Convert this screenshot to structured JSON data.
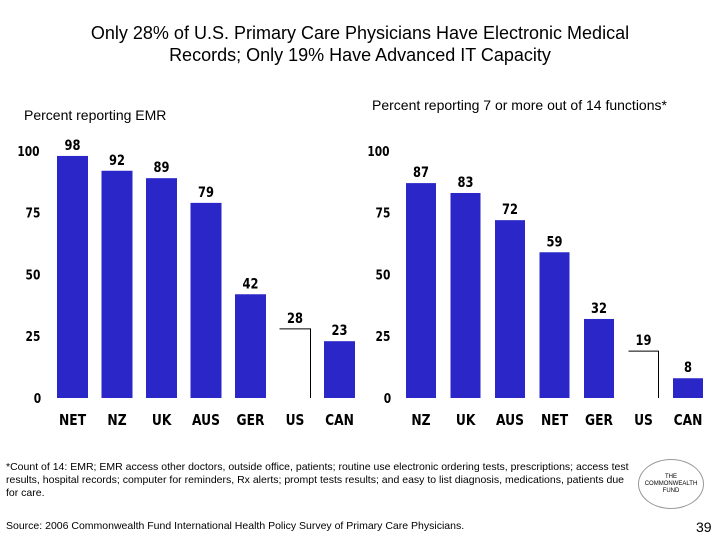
{
  "title": {
    "line1": "Only 28% of U.S. Primary Care Physicians Have Electronic Medical",
    "line2": "Records; Only 19% Have Advanced IT Capacity"
  },
  "chart_data": [
    {
      "type": "bar",
      "title": "Percent reporting EMR",
      "categories": [
        "NET",
        "NZ",
        "UK",
        "AUS",
        "GER",
        "US",
        "CAN"
      ],
      "values": [
        98,
        92,
        89,
        79,
        42,
        28,
        23
      ],
      "highlight": "US",
      "ylim": [
        0,
        100
      ],
      "yticks": [
        0,
        25,
        50,
        75,
        100
      ],
      "grid": false
    },
    {
      "type": "bar",
      "title": "Percent reporting 7 or more out of 14 functions*",
      "categories": [
        "NZ",
        "UK",
        "AUS",
        "NET",
        "GER",
        "US",
        "CAN"
      ],
      "values": [
        87,
        83,
        72,
        59,
        32,
        19,
        8
      ],
      "highlight": "US",
      "ylim": [
        0,
        100
      ],
      "yticks": [
        0,
        25,
        50,
        75,
        100
      ],
      "grid": false
    }
  ],
  "colors": {
    "bar": "#2a26c8",
    "highlight": "#ffffff",
    "text": "#000000"
  },
  "footnote": "*Count of 14: EMR; EMR access other doctors, outside office, patients; routine use electronic ordering  tests, prescriptions; access test results, hospital records; computer for  reminders, Rx alerts; prompt tests results; and easy to list diagnosis, medications, patients due for care.",
  "source": "Source: 2006 Commonwealth Fund International Health Policy Survey of Primary Care Physicians.",
  "logo": {
    "line1": "THE",
    "line2": "COMMONWEALTH",
    "line3": "FUND"
  },
  "page_number": "39"
}
